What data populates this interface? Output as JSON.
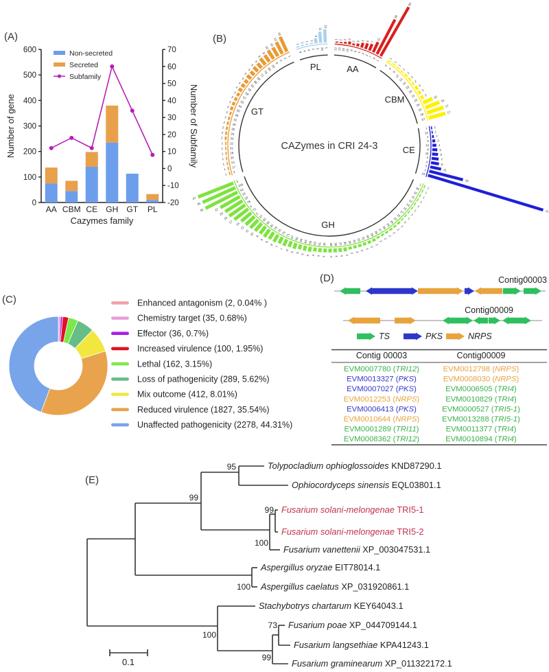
{
  "panel_labels": {
    "a": "(A)",
    "b": "(B)",
    "c": "(C)",
    "d": "(D)",
    "e": "(E)"
  },
  "colors": {
    "non_secreted": "#6d9eeb",
    "secreted": "#e8a04a",
    "subfamily_line": "#b520b5",
    "aa": "#d7201d",
    "cbm": "#ffef00",
    "ce": "#1f1fd6",
    "gh": "#7de33e",
    "gt": "#e89b32",
    "pl": "#a9d2ea",
    "ts": "#2fbf5f",
    "pks": "#2e36cc",
    "nrps": "#e8a33d",
    "table_ts": "#3bb24a",
    "table_pks": "#3636cc",
    "table_nrps": "#e8a33d",
    "tree_red": "#c0344b",
    "tree_line": "#333333",
    "text": "#222222"
  },
  "chart_data": [
    {
      "id": "panel_a",
      "type": "bar",
      "title": "",
      "categories": [
        "AA",
        "CBM",
        "CE",
        "GH",
        "GT",
        "PL"
      ],
      "series": [
        {
          "name": "Non-secreted",
          "type": "bar",
          "values": [
            75,
            45,
            140,
            235,
            113,
            10
          ]
        },
        {
          "name": "Secreted",
          "type": "bar",
          "values": [
            62,
            40,
            58,
            145,
            0,
            23
          ]
        },
        {
          "name": "Subfamily",
          "type": "line",
          "axis": "right",
          "values": [
            12,
            18,
            12,
            60,
            34,
            8
          ]
        }
      ],
      "ylabel": "Number of gene",
      "ylabel_right": "Number of Subfamily",
      "xlabel": "Cazymes family",
      "ylim_left": [
        0,
        600
      ],
      "ylim_right": [
        -20,
        70
      ],
      "yticks_left": [
        0,
        100,
        200,
        300,
        400,
        500,
        600
      ],
      "yticks_right": [
        -20,
        -10,
        0,
        10,
        20,
        30,
        40,
        50,
        60,
        70
      ],
      "legend_position": "top-left-inside",
      "grid": false
    },
    {
      "id": "panel_b",
      "type": "radial-bar",
      "title": "CAZymes in CRI 24-3",
      "groups": [
        {
          "name": "AA",
          "color": "#d7201d",
          "start": 3,
          "end": 31,
          "labels": [
            "12",
            "13",
            "16",
            "10",
            "8",
            "6",
            "5",
            "4",
            "2",
            "7",
            "9",
            "1"
          ],
          "values": [
            1,
            1,
            2,
            3,
            2,
            3,
            5,
            6,
            7,
            11,
            38,
            55
          ]
        },
        {
          "name": "CBM",
          "color": "#ffef00",
          "start": 34,
          "end": 76,
          "labels": [
            "4",
            "6",
            "9",
            "12",
            "13",
            "14",
            "19",
            "20",
            "21",
            "23",
            "24",
            "32",
            "18",
            "67"
          ],
          "values": [
            1,
            1,
            1,
            1,
            2,
            2,
            2,
            3,
            3,
            3,
            10,
            15,
            17,
            17
          ]
        },
        {
          "name": "CE",
          "color": "#1f1fd6",
          "start": 79,
          "end": 108,
          "labels": [
            "7",
            "14",
            "2",
            "9",
            "12",
            "8",
            "16",
            "5",
            "4",
            "3",
            "1",
            "10"
          ],
          "values": [
            1,
            1,
            2,
            3,
            4,
            5,
            6,
            7,
            8,
            11,
            34,
            117
          ]
        },
        {
          "name": "GH",
          "color": "#7de33e",
          "start": 112,
          "end": 250,
          "labels": [
            "1",
            "94",
            "10",
            "11",
            "12",
            "13",
            "15",
            "17",
            "20",
            "23",
            "24",
            "25",
            "26",
            "27",
            "28",
            "29",
            "30",
            "31",
            "32",
            "33",
            "35",
            "36",
            "37",
            "38",
            "39",
            "45",
            "51",
            "53",
            "55",
            "63",
            "64",
            "65",
            "67",
            "71",
            "75",
            "76",
            "79",
            "81",
            "92",
            "93",
            "47",
            "2",
            "72",
            "5",
            "78",
            "18",
            "16",
            "43",
            "109",
            "3"
          ],
          "values": [
            1,
            1,
            1,
            1,
            1,
            1,
            1,
            1,
            1,
            2,
            2,
            2,
            2,
            2,
            2,
            3,
            3,
            3,
            3,
            3,
            3,
            4,
            4,
            4,
            4,
            4,
            4,
            4,
            5,
            5,
            5,
            6,
            6,
            7,
            7,
            8,
            8,
            9,
            9,
            10,
            11,
            12,
            13,
            17,
            19,
            20,
            22,
            35,
            35,
            37
          ]
        },
        {
          "name": "GT",
          "color": "#e89b32",
          "start": 253,
          "end": 337,
          "labels": [
            "3",
            "17",
            "24",
            "25",
            "28",
            "31",
            "32",
            "33",
            "34",
            "35",
            "39",
            "41",
            "48",
            "50",
            "54",
            "55",
            "57",
            "58",
            "59",
            "62",
            "66",
            "69",
            "71",
            "76",
            "90",
            "20",
            "8",
            "4",
            "2",
            "1"
          ],
          "values": [
            1,
            1,
            1,
            1,
            1,
            1,
            1,
            2,
            2,
            2,
            2,
            2,
            2,
            3,
            3,
            3,
            3,
            4,
            4,
            4,
            5,
            5,
            6,
            6,
            8,
            8,
            10,
            10,
            13,
            16
          ]
        },
        {
          "name": "PL",
          "color": "#a9d2ea",
          "start": 341,
          "end": 359,
          "labels": [
            "9",
            "4",
            "4",
            "1",
            "3",
            "26",
            "1"
          ],
          "values": [
            1,
            1,
            1,
            1,
            5,
            11,
            13
          ]
        }
      ]
    },
    {
      "id": "panel_c",
      "type": "pie",
      "donut": true,
      "legend_position": "right",
      "slices": [
        {
          "label": "Enhanced antagonism",
          "count": 2,
          "pct": 0.04,
          "color": "#f1a1ab",
          "legend": "Enhanced antagonism (2, 0.04% )"
        },
        {
          "label": "Chemistry target",
          "count": 35,
          "pct": 0.68,
          "color": "#ea9ed8",
          "legend": "Chemistry target (35, 0.68%)"
        },
        {
          "label": "Effector",
          "count": 36,
          "pct": 0.7,
          "color": "#a621e8",
          "legend": "Effector (36, 0.7%)"
        },
        {
          "label": "Increased virulence",
          "count": 100,
          "pct": 1.95,
          "color": "#e01120",
          "legend": "Increased virulence (100, 1.95%)"
        },
        {
          "label": "Lethal",
          "count": 162,
          "pct": 3.15,
          "color": "#7ce84a",
          "legend": "Lethal (162, 3.15%)"
        },
        {
          "label": "Loss of pathogenicity",
          "count": 289,
          "pct": 5.62,
          "color": "#67bd86",
          "legend": "Loss of pathogenicity (289, 5.62%)"
        },
        {
          "label": "Mix outcome",
          "count": 412,
          "pct": 8.01,
          "color": "#f2e73e",
          "legend": "Mix outcome (412, 8.01%)"
        },
        {
          "label": "Reduced virulence",
          "count": 1827,
          "pct": 35.54,
          "color": "#e8a34c",
          "legend": "Reduced virulence (1827, 35.54%)"
        },
        {
          "label": "Unaffected pathogenicity",
          "count": 2278,
          "pct": 44.31,
          "color": "#78a4ea",
          "legend": "Unaffected pathogenicity (2278, 44.31%)"
        }
      ]
    }
  ],
  "panel_d": {
    "contig1_label": "Contig00003",
    "contig2_label": "Contig00009",
    "legend": [
      {
        "label": "TS",
        "type": "ts"
      },
      {
        "label": "PKS",
        "type": "pks"
      },
      {
        "label": "NRPS",
        "type": "nrps"
      }
    ],
    "contig1_genes": [
      {
        "s": 495,
        "e": 525,
        "dir": "L",
        "t": "ts"
      },
      {
        "s": 533,
        "e": 557,
        "dir": "L",
        "t": "pks"
      },
      {
        "s": 557,
        "e": 609,
        "dir": "R",
        "t": "pks"
      },
      {
        "s": 609,
        "e": 675,
        "dir": "R",
        "t": "nrps"
      },
      {
        "s": 677,
        "e": 691,
        "dir": "R",
        "t": "pks"
      },
      {
        "s": 692,
        "e": 732,
        "dir": "L",
        "t": "nrps"
      },
      {
        "s": 733,
        "e": 759,
        "dir": "R",
        "t": "ts"
      },
      {
        "s": 763,
        "e": 789,
        "dir": "R",
        "t": "ts"
      }
    ],
    "contig2_genes": [
      {
        "s": 507,
        "e": 554,
        "dir": "L",
        "t": "nrps"
      },
      {
        "s": 575,
        "e": 606,
        "dir": "R",
        "t": "nrps"
      },
      {
        "s": 645,
        "e": 672,
        "dir": "L",
        "t": "ts"
      },
      {
        "s": 672,
        "e": 689,
        "dir": "R",
        "t": "ts"
      },
      {
        "s": 690,
        "e": 711,
        "dir": "L",
        "t": "ts"
      },
      {
        "s": 712,
        "e": 729,
        "dir": "R",
        "t": "ts"
      },
      {
        "s": 732,
        "e": 755,
        "dir": "L",
        "t": "ts"
      },
      {
        "s": 755,
        "e": 774,
        "dir": "R",
        "t": "ts"
      }
    ],
    "table": {
      "headers": [
        "Contig 00003",
        "Contig00009"
      ],
      "col1": [
        {
          "id": "EVM0007780",
          "tag": "TRI12",
          "t": "ts"
        },
        {
          "id": "EVM0013327",
          "tag": "PKS",
          "t": "pks"
        },
        {
          "id": "EVM0007027",
          "tag": "PKS",
          "t": "pks"
        },
        {
          "id": "EVM0012253",
          "tag": "NRPS",
          "t": "nrps"
        },
        {
          "id": "EVM0006413",
          "tag": "PKS",
          "t": "pks"
        },
        {
          "id": "EVM0010644",
          "tag": "NRPS",
          "t": "nrps"
        },
        {
          "id": "EVM0001289",
          "tag": "TRI11",
          "t": "ts"
        },
        {
          "id": "EVM0008362",
          "tag": "TRI12",
          "t": "ts"
        }
      ],
      "col2": [
        {
          "id": "EVM0012798",
          "tag": "NRPS",
          "t": "nrps"
        },
        {
          "id": "EVM0008030",
          "tag": "NRPS",
          "t": "nrps"
        },
        {
          "id": "EVM0006505",
          "tag": "TRI4",
          "t": "ts"
        },
        {
          "id": "EVM0010829",
          "tag": "TRI4",
          "t": "ts"
        },
        {
          "id": "EVM0000527",
          "tag": "TRI5-1",
          "t": "ts"
        },
        {
          "id": "EVM0013288",
          "tag": "TRI5-1",
          "t": "ts"
        },
        {
          "id": "EVM0011377",
          "tag": "TRI4",
          "t": "ts"
        },
        {
          "id": "EVM0010894",
          "tag": "TRI4",
          "t": "ts"
        }
      ]
    }
  },
  "panel_e": {
    "tips": [
      {
        "species": "Tolypocladium ophioglossoides",
        "acc": "KND87290.1",
        "red": false
      },
      {
        "species": "Ophiocordyceps sinensis",
        "acc": "EQL03801.1",
        "red": false
      },
      {
        "species": "Fusarium solani-melongenae",
        "acc": "TRI5-1",
        "red": true
      },
      {
        "species": "Fusarium solani-melongenae",
        "acc": "TRI5-2",
        "red": true
      },
      {
        "species": "Fusarium vanettenii",
        "acc": "XP_003047531.1",
        "red": false
      },
      {
        "species": "Aspergillus oryzae",
        "acc": "EIT78014.1",
        "red": false
      },
      {
        "species": "Aspergillus caelatus",
        "acc": "XP_031920861.1",
        "red": false
      },
      {
        "species": "Stachybotrys chartarum",
        "acc": "KEY64043.1",
        "red": false
      },
      {
        "species": "Fusarium poae",
        "acc": "XP_044709144.1",
        "red": false
      },
      {
        "species": "Fusarium langsethiae",
        "acc": "KPA41243.1",
        "red": false
      },
      {
        "species": "Fusarium graminearum",
        "acc": "XP_011322172.1",
        "red": false
      }
    ],
    "bootstrap": {
      "n95": "95",
      "n99a": "99",
      "n99b": "99",
      "n100a": "100",
      "n100b": "100",
      "n73": "73",
      "n99c": "99",
      "n100c": "100"
    },
    "scale_label": "0.1"
  }
}
